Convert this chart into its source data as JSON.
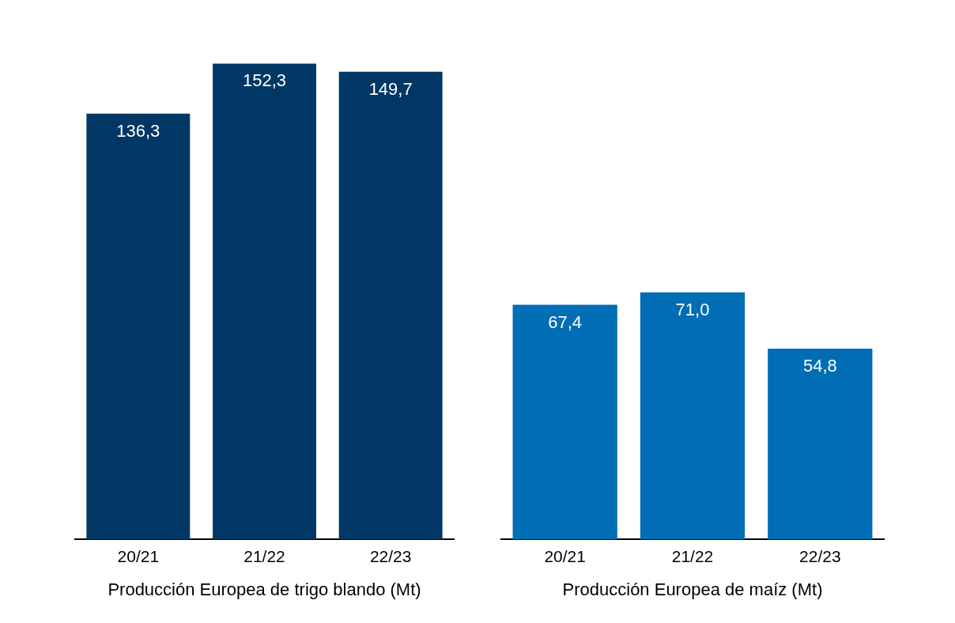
{
  "chart_data": [
    {
      "type": "bar",
      "xlabel": "Producción Europea de trigo blando (Mt)",
      "categories": [
        "20/21",
        "21/22",
        "22/23"
      ],
      "values": [
        136.3,
        152.3,
        149.7
      ],
      "value_labels": [
        "136,3",
        "152,3",
        "149,7"
      ],
      "color": "#003764",
      "grid": false,
      "legend": false,
      "tick_labels": "x"
    },
    {
      "type": "bar",
      "xlabel": "Producción Europea de maíz (Mt)",
      "categories": [
        "20/21",
        "21/22",
        "22/23"
      ],
      "values": [
        67.4,
        71.0,
        54.8
      ],
      "value_labels": [
        "67,4",
        "71,0",
        "54,8"
      ],
      "color": "#006db5",
      "grid": false,
      "legend": false,
      "tick_labels": "x"
    }
  ]
}
